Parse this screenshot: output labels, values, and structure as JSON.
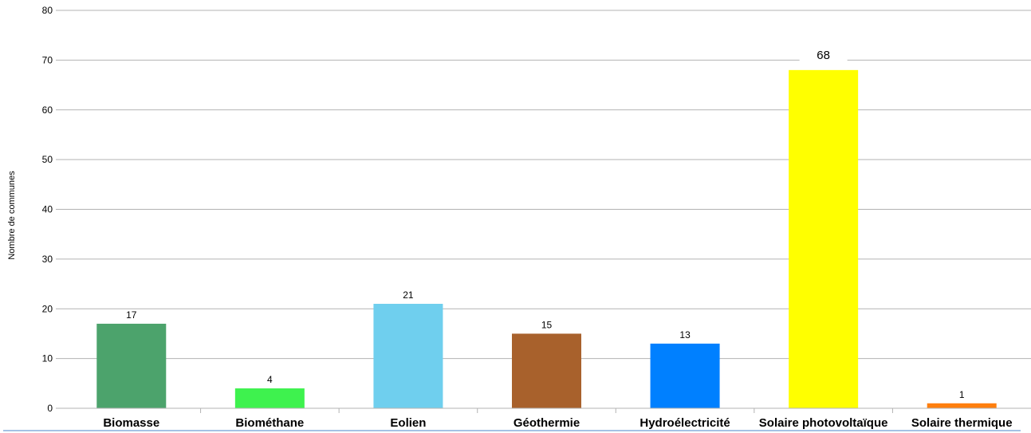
{
  "chart_data": {
    "type": "bar",
    "categories": [
      "Biomasse",
      "Biométhane",
      "Eolien",
      "Géothermie",
      "Hydroélectricité",
      "Solaire photovoltaïque",
      "Solaire thermique"
    ],
    "values": [
      17,
      4,
      21,
      15,
      13,
      68,
      1
    ],
    "data_labels": [
      "17",
      "4",
      "21",
      "15",
      "13",
      "68",
      "1"
    ],
    "colors": [
      "#4ca36c",
      "#3ef24e",
      "#6fcfee",
      "#a8612c",
      "#0080ff",
      "#ffff00",
      "#ff7f0e"
    ],
    "ylabel": "Nombre de communes",
    "xlabel": "",
    "ylim": [
      0,
      80
    ],
    "yticks": [
      0,
      10,
      20,
      30,
      40,
      50,
      60,
      70,
      80
    ],
    "grid": true,
    "legend": "none"
  }
}
